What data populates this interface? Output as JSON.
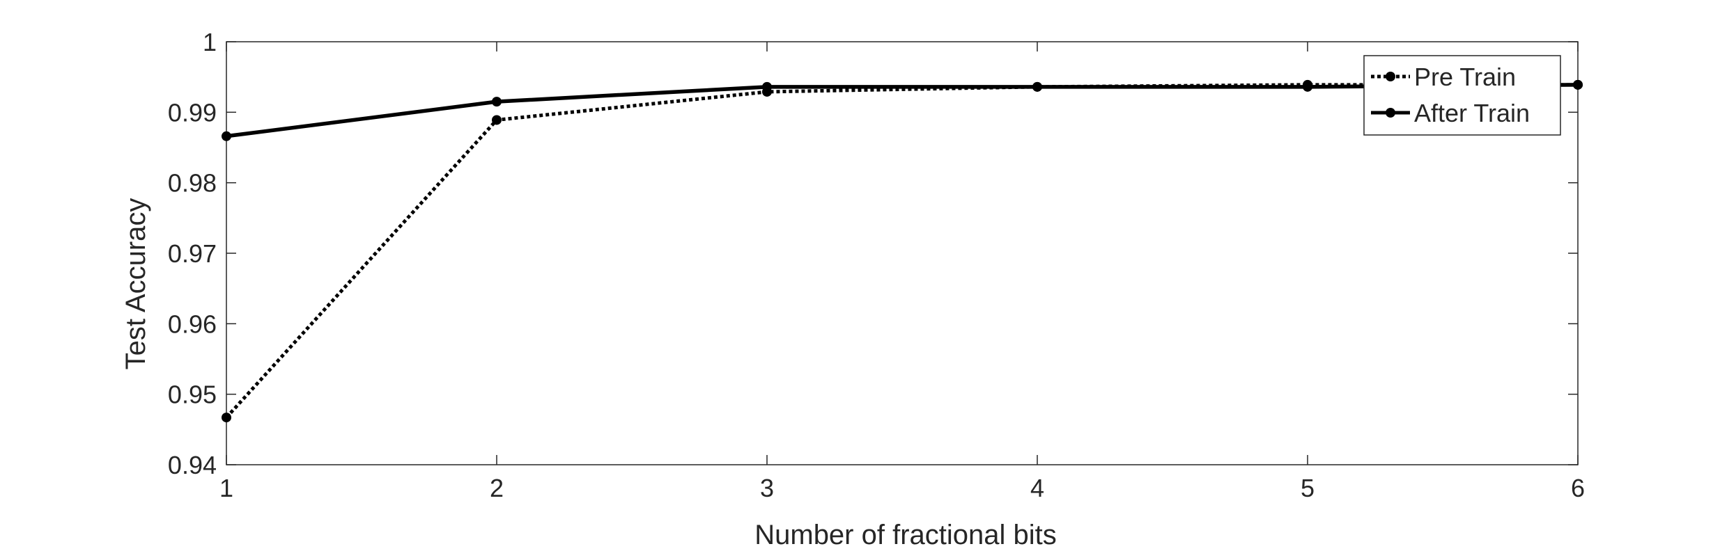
{
  "chart_data": {
    "type": "line",
    "title": "",
    "xlabel": "Number of fractional bits",
    "ylabel": "Test Accuracy",
    "x": [
      1,
      2,
      3,
      4,
      5,
      6
    ],
    "xlim": [
      1,
      6
    ],
    "ylim": [
      0.94,
      1
    ],
    "xticks": [
      1,
      2,
      3,
      4,
      5,
      6
    ],
    "xtick_labels": [
      "1",
      "2",
      "3",
      "4",
      "5",
      "6"
    ],
    "yticks": [
      0.94,
      0.95,
      0.96,
      0.97,
      0.98,
      0.99,
      1
    ],
    "ytick_labels": [
      "0.94",
      "0.95",
      "0.96",
      "0.97",
      "0.98",
      "0.99",
      "1"
    ],
    "grid": false,
    "legend_position": "top-right",
    "series": [
      {
        "name": "Pre Train",
        "line_style": "dotted",
        "marker": "circle",
        "color": "#000000",
        "values": [
          0.9467,
          0.9889,
          0.9929,
          0.9936,
          0.9939,
          0.9939
        ]
      },
      {
        "name": "After Train",
        "line_style": "solid",
        "marker": "circle",
        "color": "#000000",
        "values": [
          0.9866,
          0.9915,
          0.9936,
          0.9936,
          0.9936,
          0.9939
        ]
      }
    ]
  }
}
